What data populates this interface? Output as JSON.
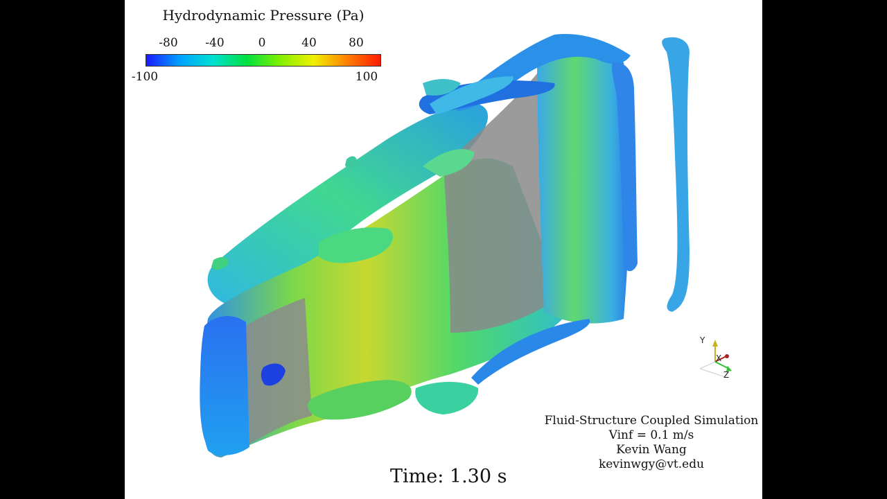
{
  "colorbar": {
    "title": "Hydrodynamic Pressure (Pa)",
    "min_label": "-100",
    "max_label": "100",
    "tick_labels": [
      "-80",
      "-40",
      "0",
      "40",
      "80"
    ],
    "range": [
      -100,
      100
    ],
    "colors": [
      "#1a1aff",
      "#00a0ff",
      "#00e0d0",
      "#00e040",
      "#80f000",
      "#f0f000",
      "#ff8000",
      "#ff1a00"
    ]
  },
  "time_label": "Time: 1.30 s",
  "credits": {
    "line1": "Fluid-Structure Coupled Simulation",
    "line2": "Vinf = 0.1 m/s",
    "line3": "Kevin Wang",
    "line4": "kevinwgy@vt.edu"
  },
  "axes": {
    "y": "Y",
    "x": "X",
    "z": "Z"
  }
}
